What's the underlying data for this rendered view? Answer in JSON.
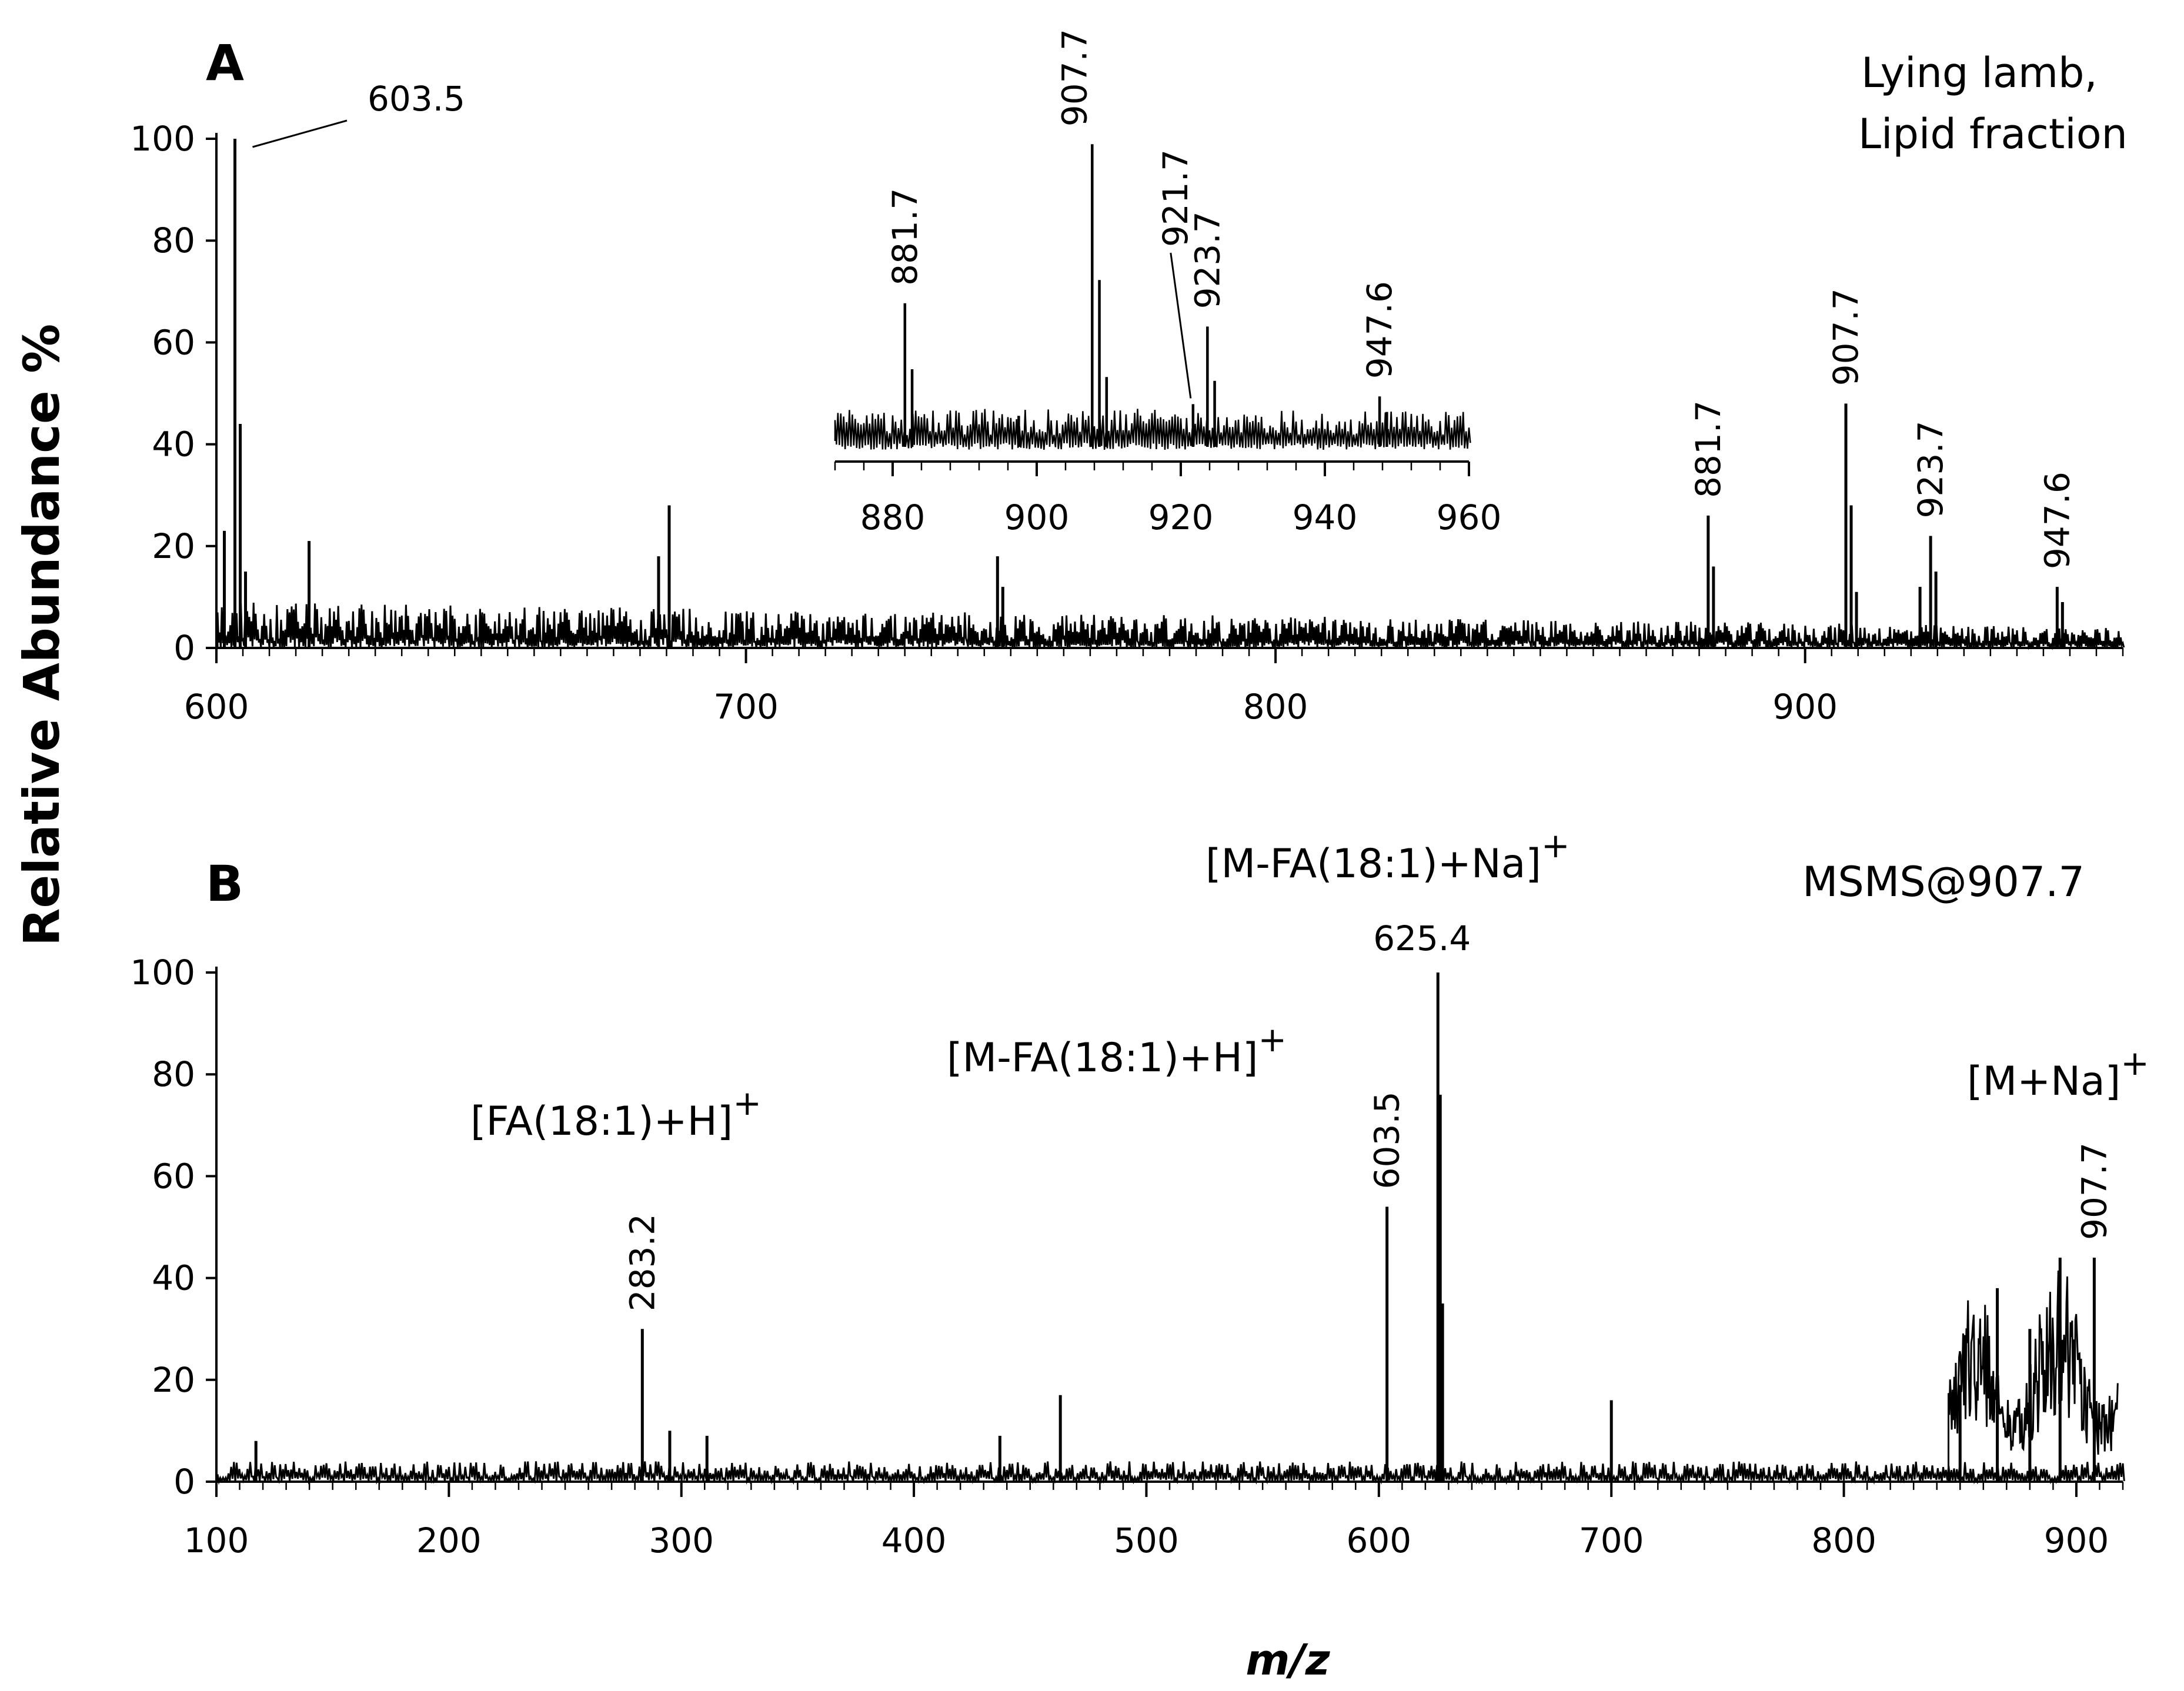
{
  "figure": {
    "ylabel": "Relative Abundance %",
    "xlabel": "m/z"
  },
  "chart_data": [
    {
      "type": "line",
      "panel": "A",
      "note_lines": [
        "Lying lamb,",
        "Lipid fraction"
      ],
      "xlim": [
        600,
        960
      ],
      "ylim": [
        0,
        100
      ],
      "xticks": [
        600,
        700,
        800,
        900
      ],
      "yticks": [
        0,
        20,
        40,
        60,
        80,
        100
      ],
      "baseline_noise": 9,
      "peaks": [
        {
          "x": 601.5,
          "y": 23
        },
        {
          "x": 603.5,
          "y": 100,
          "label": "603.5"
        },
        {
          "x": 604.5,
          "y": 44
        },
        {
          "x": 605.5,
          "y": 15
        },
        {
          "x": 617.5,
          "y": 21
        },
        {
          "x": 685.5,
          "y": 28
        },
        {
          "x": 683.5,
          "y": 18
        },
        {
          "x": 747.5,
          "y": 18
        },
        {
          "x": 748.5,
          "y": 12
        },
        {
          "x": 881.7,
          "y": 26,
          "label": "881.7"
        },
        {
          "x": 882.7,
          "y": 16
        },
        {
          "x": 907.7,
          "y": 48,
          "label": "907.7"
        },
        {
          "x": 908.7,
          "y": 28
        },
        {
          "x": 909.7,
          "y": 11
        },
        {
          "x": 921.7,
          "y": 12
        },
        {
          "x": 923.7,
          "y": 22,
          "label": "923.7"
        },
        {
          "x": 924.7,
          "y": 15
        },
        {
          "x": 947.6,
          "y": 12,
          "label": "947.6"
        },
        {
          "x": 948.6,
          "y": 9
        }
      ],
      "inset": {
        "xlim": [
          872,
          960
        ],
        "xticks": [
          880,
          900,
          920,
          940,
          960
        ],
        "peaks": [
          {
            "x": 881.7,
            "y": 37,
            "label": "881.7"
          },
          {
            "x": 882.7,
            "y": 20
          },
          {
            "x": 897.5,
            "y": 8
          },
          {
            "x": 907.7,
            "y": 78,
            "label": "907.7"
          },
          {
            "x": 908.7,
            "y": 43
          },
          {
            "x": 909.7,
            "y": 18
          },
          {
            "x": 921.7,
            "y": 11,
            "label": "921.7"
          },
          {
            "x": 923.7,
            "y": 31,
            "label": "923.7"
          },
          {
            "x": 924.7,
            "y": 17
          },
          {
            "x": 947.6,
            "y": 13,
            "label": "947.6"
          },
          {
            "x": 948.6,
            "y": 9
          }
        ]
      }
    },
    {
      "type": "line",
      "panel": "B",
      "note": "MSMS@907.7",
      "xlim": [
        100,
        920
      ],
      "ylim": [
        0,
        100
      ],
      "xticks": [
        100,
        200,
        300,
        400,
        500,
        600,
        700,
        800,
        900
      ],
      "yticks": [
        0,
        20,
        40,
        60,
        80,
        100
      ],
      "baseline_noise": 4,
      "peaks": [
        {
          "x": 117,
          "y": 8
        },
        {
          "x": 283.2,
          "y": 30,
          "label": "283.2"
        },
        {
          "x": 295,
          "y": 10
        },
        {
          "x": 311,
          "y": 9
        },
        {
          "x": 437,
          "y": 9
        },
        {
          "x": 463,
          "y": 17
        },
        {
          "x": 603.5,
          "y": 54,
          "label": "603.5"
        },
        {
          "x": 625.4,
          "y": 100,
          "label": "625.4"
        },
        {
          "x": 626.4,
          "y": 76
        },
        {
          "x": 627.4,
          "y": 35
        },
        {
          "x": 700,
          "y": 16
        },
        {
          "x": 850,
          "y": 19
        },
        {
          "x": 866,
          "y": 38
        },
        {
          "x": 880,
          "y": 30
        },
        {
          "x": 893,
          "y": 44
        },
        {
          "x": 907.7,
          "y": 44,
          "label": "907.7"
        }
      ],
      "annotations": [
        {
          "text": "[FA(18:1)+H]",
          "sup": "+",
          "at": 283.2
        },
        {
          "text": "[M-FA(18:1)+H]",
          "sup": "+",
          "at": 603.5
        },
        {
          "text": "[M-FA(18:1)+Na]",
          "sup": "+",
          "at": 625.4
        },
        {
          "text": "[M+Na]",
          "sup": "+",
          "at": 907.7
        }
      ]
    }
  ]
}
